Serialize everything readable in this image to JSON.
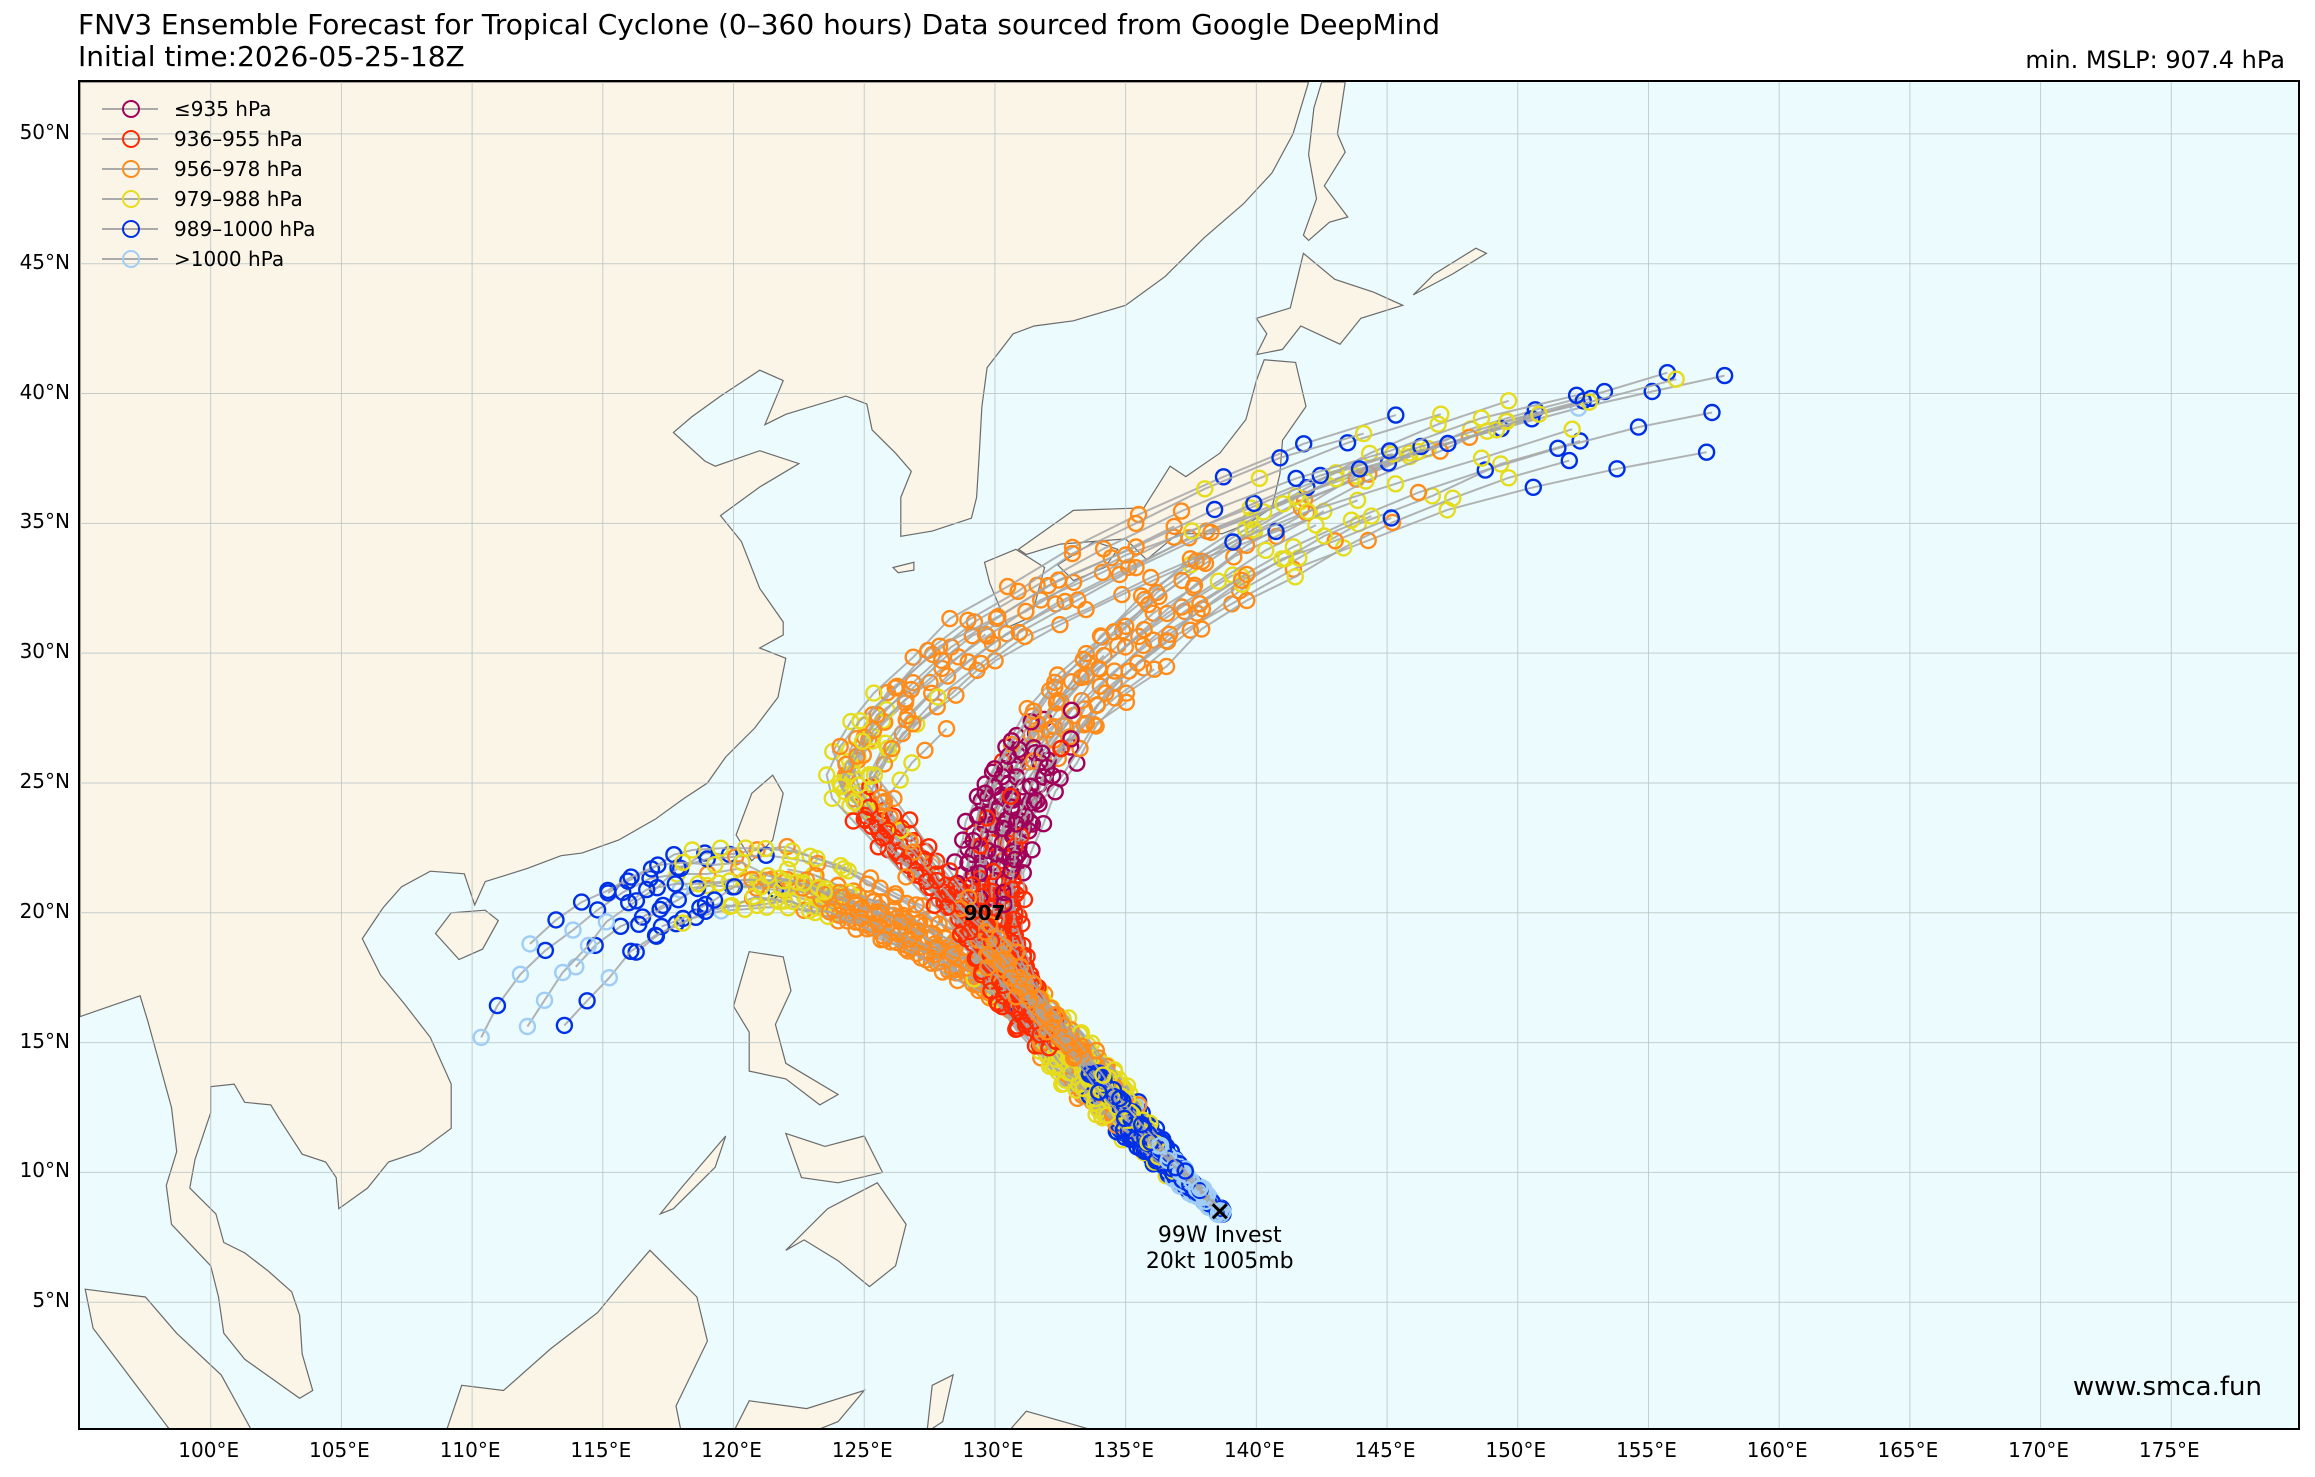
{
  "header": {
    "title_line1": "FNV3 Ensemble Forecast for Tropical Cyclone (0–360 hours) Data sourced from Google DeepMind",
    "title_line2": "Initial time:2026-05-25-18Z",
    "min_mslp": "min. MSLP: 907.4 hPa"
  },
  "legend": [
    {
      "label": "≤935 hPa",
      "color": "#a0005a"
    },
    {
      "label": "936–955 hPa",
      "color": "#ff2a00"
    },
    {
      "label": "956–978 hPa",
      "color": "#ff8c1a"
    },
    {
      "label": "979–988 hPa",
      "color": "#e6dc1e"
    },
    {
      "label": "989–1000 hPa",
      "color": "#0030e6"
    },
    {
      "label": ">1000 hPa",
      "color": "#9fcdf5"
    }
  ],
  "map": {
    "projection": "PlateCarree",
    "lon_range": [
      95,
      180
    ],
    "lat_range": [
      0,
      52
    ],
    "land_color": "#fbf5e8",
    "ocean_color": "#ecfbfd",
    "lat_ticks": [
      {
        "value": 5,
        "label": "5°N"
      },
      {
        "value": 10,
        "label": "10°N"
      },
      {
        "value": 15,
        "label": "15°N"
      },
      {
        "value": 20,
        "label": "20°N"
      },
      {
        "value": 25,
        "label": "25°N"
      },
      {
        "value": 30,
        "label": "30°N"
      },
      {
        "value": 35,
        "label": "35°N"
      },
      {
        "value": 40,
        "label": "40°N"
      },
      {
        "value": 45,
        "label": "45°N"
      },
      {
        "value": 50,
        "label": "50°N"
      }
    ],
    "lon_ticks": [
      {
        "value": 100,
        "label": "100°E"
      },
      {
        "value": 105,
        "label": "105°E"
      },
      {
        "value": 110,
        "label": "110°E"
      },
      {
        "value": 115,
        "label": "115°E"
      },
      {
        "value": 120,
        "label": "120°E"
      },
      {
        "value": 125,
        "label": "125°E"
      },
      {
        "value": 130,
        "label": "130°E"
      },
      {
        "value": 135,
        "label": "135°E"
      },
      {
        "value": 140,
        "label": "140°E"
      },
      {
        "value": 145,
        "label": "145°E"
      },
      {
        "value": 150,
        "label": "150°E"
      },
      {
        "value": 155,
        "label": "155°E"
      },
      {
        "value": 160,
        "label": "160°E"
      },
      {
        "value": 165,
        "label": "165°E"
      },
      {
        "value": 170,
        "label": "170°E"
      },
      {
        "value": 175,
        "label": "175°E"
      }
    ]
  },
  "storm": {
    "name": "99W Invest",
    "intensity": "20kt 1005mb",
    "lon": 138.6,
    "lat": 8.5
  },
  "peak": {
    "label": "907",
    "lon": 129.8,
    "lat": 20.0
  },
  "chart_data": {
    "type": "scatter",
    "title": "FNV3 Ensemble Forecast for Tropical Cyclone (0–360 hours) Data sourced from Google DeepMind",
    "xlim": [
      95,
      180
    ],
    "ylim": [
      0,
      52
    ],
    "min_mslp_hpa": 907.4,
    "track_groups": [
      {
        "name": "west",
        "weight": 0.35,
        "path": [
          [
            138.6,
            8.5
          ],
          [
            137.2,
            9.6
          ],
          [
            136.2,
            11.0
          ],
          [
            134.6,
            13.2
          ],
          [
            132.4,
            15.4
          ],
          [
            129.8,
            17.4
          ],
          [
            127.0,
            19.0
          ],
          [
            124.0,
            20.5
          ],
          [
            121.0,
            21.3
          ],
          [
            118.0,
            21.0
          ],
          [
            115.5,
            19.5
          ],
          [
            113.0,
            17.0
          ],
          [
            111.0,
            14.0
          ]
        ],
        "spread": 1.6,
        "bands": [
          [
            0,
            0.08,
            1005
          ],
          [
            0.08,
            0.22,
            994
          ],
          [
            0.22,
            0.4,
            982
          ],
          [
            0.4,
            0.58,
            968
          ],
          [
            0.58,
            0.72,
            982
          ],
          [
            0.72,
            0.86,
            994
          ],
          [
            0.86,
            1,
            1004
          ]
        ]
      },
      {
        "name": "north-recurve",
        "weight": 0.4,
        "path": [
          [
            138.6,
            8.5
          ],
          [
            137.0,
            9.8
          ],
          [
            135.0,
            11.6
          ],
          [
            132.7,
            14.0
          ],
          [
            131.0,
            16.5
          ],
          [
            130.0,
            19.0
          ],
          [
            129.8,
            21.5
          ],
          [
            130.6,
            24.5
          ],
          [
            133.0,
            28.0
          ],
          [
            137.0,
            31.5
          ],
          [
            142.0,
            34.5
          ],
          [
            148.0,
            37.0
          ],
          [
            155.0,
            38.8
          ],
          [
            162.0,
            40.2
          ]
        ],
        "spread": 1.8,
        "bands": [
          [
            0,
            0.08,
            1004
          ],
          [
            0.08,
            0.16,
            993
          ],
          [
            0.16,
            0.26,
            982
          ],
          [
            0.26,
            0.44,
            946
          ],
          [
            0.44,
            0.58,
            930
          ],
          [
            0.58,
            0.72,
            966
          ],
          [
            0.72,
            0.86,
            982
          ],
          [
            0.86,
            1,
            994
          ]
        ]
      },
      {
        "name": "taiwan",
        "weight": 0.25,
        "path": [
          [
            138.6,
            8.5
          ],
          [
            136.8,
            10.4
          ],
          [
            134.8,
            12.6
          ],
          [
            132.6,
            15.2
          ],
          [
            130.4,
            18.0
          ],
          [
            128.2,
            20.6
          ],
          [
            126.0,
            23.0
          ],
          [
            124.4,
            25.0
          ],
          [
            126.0,
            27.5
          ],
          [
            129.5,
            30.5
          ],
          [
            135.0,
            33.5
          ],
          [
            142.0,
            36.5
          ],
          [
            150.0,
            39.0
          ],
          [
            158.0,
            41.0
          ]
        ],
        "spread": 1.5,
        "bands": [
          [
            0,
            0.1,
            1003
          ],
          [
            0.1,
            0.2,
            992
          ],
          [
            0.2,
            0.34,
            970
          ],
          [
            0.34,
            0.5,
            950
          ],
          [
            0.5,
            0.64,
            980
          ],
          [
            0.64,
            0.8,
            970
          ],
          [
            0.8,
            1,
            986
          ]
        ]
      }
    ]
  }
}
